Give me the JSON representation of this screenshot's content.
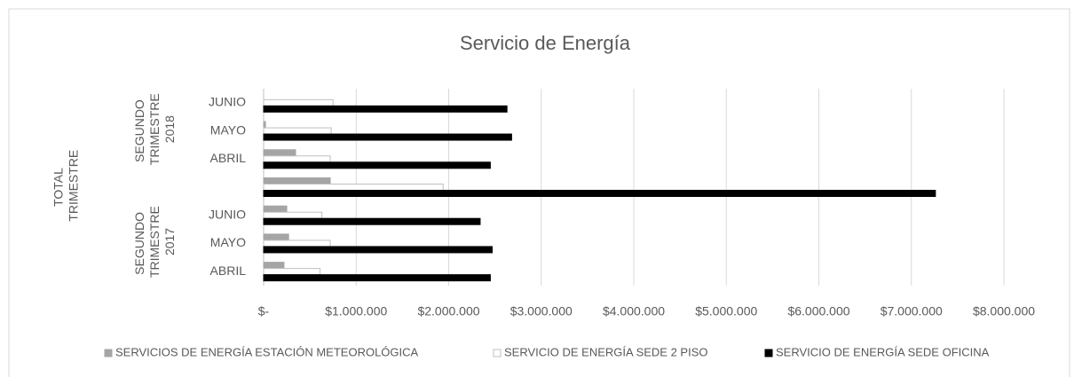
{
  "chart_data": {
    "type": "bar",
    "orientation": "horizontal",
    "title": "Servicio de Energía",
    "categories": [
      "ABRIL",
      "MAYO",
      "JUNIO",
      null,
      "ABRIL",
      "MAYO",
      "JUNIO"
    ],
    "groups": [
      {
        "label": "SEGUNDO TRIMESTRE 2017",
        "span": [
          0,
          2
        ]
      },
      {
        "label": "TOTAL TRIMESTRE",
        "span": [
          3,
          3
        ]
      },
      {
        "label": "SEGUNDO TRIMESTRE 2018",
        "span": [
          4,
          6
        ]
      }
    ],
    "series": [
      {
        "name": "SERVICIOS DE ENERGÍA ESTACIÓN METEOROLÓGICA",
        "color": "#a5a5a5",
        "values": [
          220000,
          270000,
          250000,
          720000,
          345000,
          20000,
          0
        ]
      },
      {
        "name": "SERVICIO DE ENERGÍA SEDE 2 PISO",
        "color": "#ffffff",
        "values": [
          610000,
          720000,
          630000,
          1940000,
          720000,
          730000,
          750000
        ]
      },
      {
        "name": "SERVICIO DE ENERGÍA SEDE OFICINA",
        "color": "#000000",
        "values": [
          2450000,
          2470000,
          2340000,
          7260000,
          2450000,
          2680000,
          2630000
        ]
      }
    ],
    "xlim": [
      0,
      8000000
    ],
    "xticks": [
      {
        "value": 0,
        "label": "$-"
      },
      {
        "value": 1000000,
        "label": "$1.000.000"
      },
      {
        "value": 2000000,
        "label": "$2.000.000"
      },
      {
        "value": 3000000,
        "label": "$3.000.000"
      },
      {
        "value": 4000000,
        "label": "$4.000.000"
      },
      {
        "value": 5000000,
        "label": "$5.000.000"
      },
      {
        "value": 6000000,
        "label": "$6.000.000"
      },
      {
        "value": 7000000,
        "label": "$7.000.000"
      },
      {
        "value": 8000000,
        "label": "$8.000.000"
      }
    ],
    "grid": true,
    "legend": "bottom"
  }
}
